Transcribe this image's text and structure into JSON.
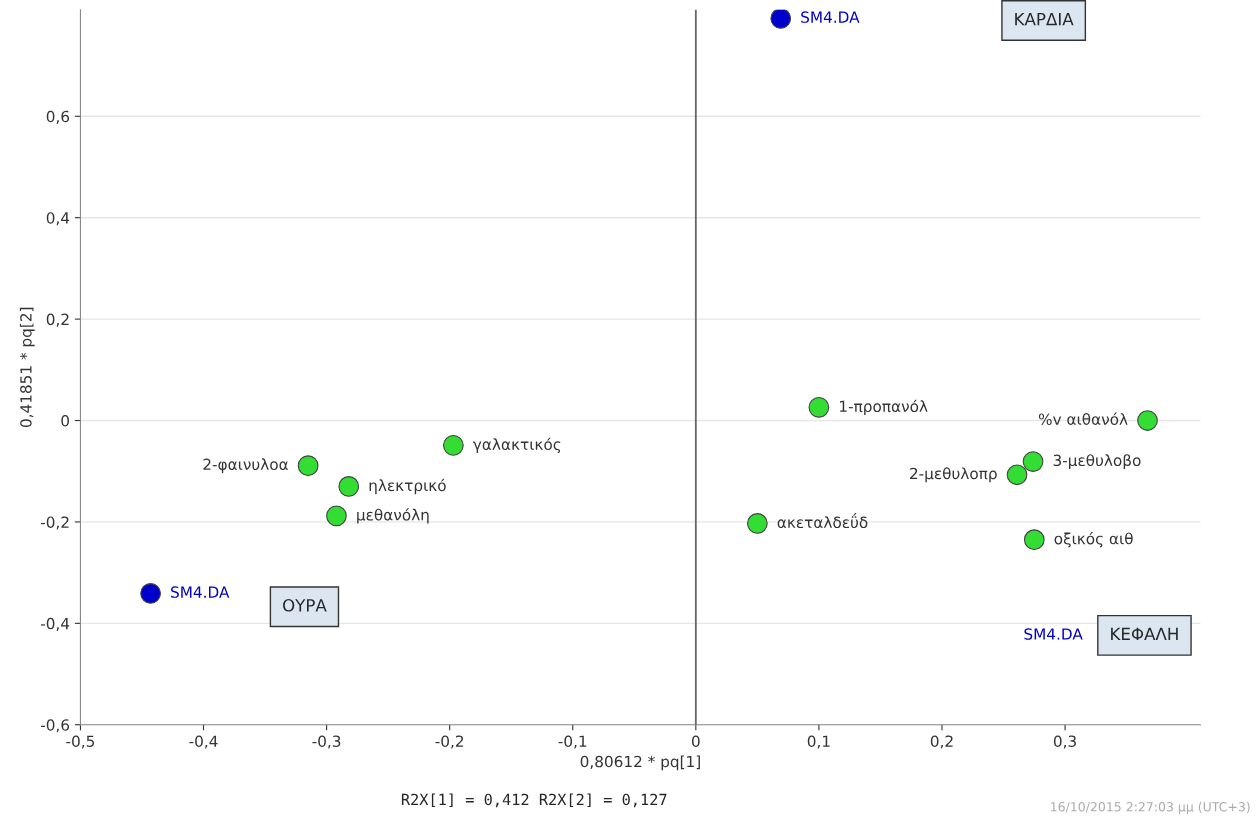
{
  "chart_data": {
    "type": "scatter",
    "xlabel": "0,80612 * pq[1]",
    "ylabel": "0,41851 * pq[2]",
    "series": [
      {
        "color": "#0000cc",
        "x": [
          0.069,
          -0.443
        ],
        "values": [
          0.793,
          -0.341
        ]
      },
      {
        "color": "#33dd33",
        "x": [
          0.1,
          0.367,
          0.274,
          0.261,
          0.275,
          0.05,
          -0.197,
          -0.282,
          -0.315,
          -0.292
        ],
        "values": [
          0.026,
          0.0,
          -0.081,
          -0.107,
          -0.235,
          -0.203,
          -0.049,
          -0.13,
          -0.089,
          -0.188
        ]
      }
    ],
    "marker": "circle",
    "xlim": [
      -0.5,
      0.41
    ],
    "ylim": [
      -0.6,
      0.81
    ],
    "xticks": [
      {
        "value": -0.5,
        "label": "-0,5"
      },
      {
        "value": -0.4,
        "label": "-0,4"
      },
      {
        "value": -0.3,
        "label": "-0,3"
      },
      {
        "value": -0.2,
        "label": "-0,2"
      },
      {
        "value": -0.1,
        "label": "-0,1"
      },
      0,
      {
        "value": 0.1,
        "label": "0,1"
      },
      {
        "value": 0.2,
        "label": "0,2"
      },
      {
        "value": 0.3,
        "label": "0,3"
      }
    ],
    "yticks": [
      {
        "value": -0.6,
        "label": "-0,6"
      },
      {
        "value": -0.4,
        "label": "-0,4"
      },
      {
        "value": -0.2,
        "label": "-0,2"
      },
      0,
      {
        "value": 0.2,
        "label": "0,2"
      },
      {
        "value": 0.4,
        "label": "0,4"
      },
      {
        "value": 0.6,
        "label": "0,6"
      }
    ],
    "grid": "y",
    "ref_lines": [
      {
        "axis": "x",
        "value": 0,
        "color": "#666666"
      }
    ],
    "annotations": [
      {
        "text": "SM4.DA",
        "x": 0.069,
        "y": 0.793
      },
      {
        "text": "SM4.DA",
        "x": -0.443,
        "y": -0.341
      },
      "SM4.DA",
      {
        "text": "1-προπανόλ",
        "x": 0.1,
        "y": 0.026
      },
      {
        "text": "%v αιθανόλ",
        "x": 0.367,
        "y": 0.0
      },
      {
        "text": "3-μεθυλοβο",
        "x": 0.274,
        "y": -0.081
      },
      {
        "text": "2-μεθυλοπρ",
        "x": 0.261,
        "y": -0.107
      },
      {
        "text": "οξικός αιθ",
        "x": 0.275,
        "y": -0.235
      },
      {
        "text": "ακεταλδεΰδ",
        "x": 0.05,
        "y": -0.203
      },
      {
        "text": "γαλακτικός",
        "x": -0.197,
        "y": -0.049
      },
      {
        "text": "ηλεκτρικό",
        "x": -0.282,
        "y": -0.13
      },
      {
        "text": "2-φαινυλοα",
        "x": -0.315,
        "y": -0.089
      },
      {
        "text": "μεθανόλη",
        "x": -0.292,
        "y": -0.188
      },
      "ΚΑΡΔΙΑ",
      "ΟΥΡΑ",
      "ΚΕΦΑΛΗ",
      "R2X[1] = 0,412 R2X[2] = 0,127",
      "16/10/2015 2:27:03 μμ (UTC+3)"
    ]
  }
}
